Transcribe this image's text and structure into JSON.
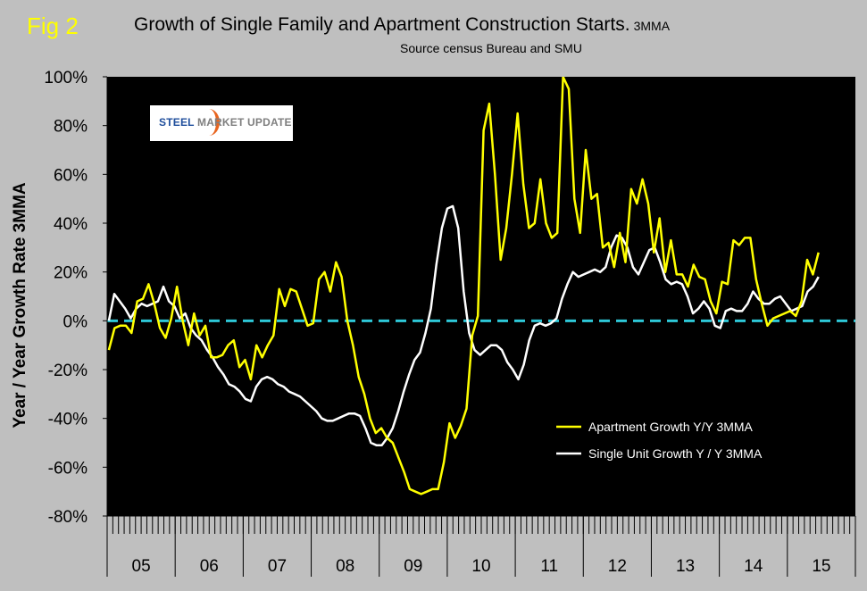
{
  "figure": {
    "label": "Fig 2",
    "title": "Growth of Single Family and Apartment Construction Starts.",
    "title_suffix": "3MMA",
    "subtitle": "Source census Bureau and SMU",
    "logo_text_a": "STEEL ",
    "logo_text_b": "MARKET UPDATE"
  },
  "colors": {
    "background": "#bfbfbf",
    "plot_bg": "#000000",
    "apartment": "#ffff00",
    "single": "#ffffff",
    "zero_line": "#2ec8d8"
  },
  "chart_data": {
    "type": "line",
    "title": "Growth of Single Family and Apartment Construction Starts. 3MMA",
    "ylabel": "Year / Year Growth Rate 3MMA",
    "xlabel": "",
    "ylim": [
      -80,
      100
    ],
    "yticks": [
      -80,
      -60,
      -40,
      -20,
      0,
      20,
      40,
      60,
      80,
      100
    ],
    "ytick_labels": [
      "-80%",
      "-60%",
      "-40%",
      "-20%",
      "0%",
      "20%",
      "40%",
      "60%",
      "80%",
      "100%"
    ],
    "years": [
      "05",
      "06",
      "07",
      "08",
      "09",
      "10",
      "11",
      "12",
      "13",
      "14",
      "15"
    ],
    "months_last_year": 6,
    "legend_position": "bottom-right",
    "reference_line": 0,
    "series": [
      {
        "name": "Apartment Growth Y/Y 3MMA",
        "values": [
          -12,
          -3,
          -2,
          -2,
          -5,
          8,
          9,
          15,
          7,
          -3,
          -7,
          1,
          14,
          0,
          -10,
          3,
          -6,
          -2,
          -15,
          -15,
          -14,
          -10,
          -8,
          -19,
          -16,
          -24,
          -10,
          -15,
          -10,
          -6,
          13,
          6,
          13,
          12,
          5,
          -2,
          -1,
          17,
          20,
          12,
          24,
          18,
          0,
          -10,
          -23,
          -30,
          -40,
          -46,
          -44,
          -48,
          -50,
          -56,
          -62,
          -69,
          -70,
          -71,
          -70,
          -69,
          -69,
          -58,
          -42,
          -48,
          -43,
          -36,
          -6,
          2,
          78,
          89,
          60,
          25,
          38,
          60,
          85,
          56,
          38,
          40,
          58,
          40,
          34,
          36,
          100,
          95,
          50,
          36,
          70,
          50,
          52,
          30,
          32,
          22,
          36,
          24,
          54,
          48,
          58,
          48,
          28,
          42,
          20,
          33,
          19,
          19,
          14,
          23,
          18,
          17,
          8,
          3,
          16,
          15,
          33,
          31,
          34,
          34,
          17,
          7,
          -2,
          1,
          2,
          3,
          4,
          2,
          8,
          25,
          19,
          28
        ]
      },
      {
        "name": "Single Unit Growth Y / Y 3MMA",
        "values": [
          0,
          11,
          8,
          5,
          1,
          5,
          7,
          6,
          7,
          8,
          14,
          8,
          6,
          1,
          3,
          -3,
          -6,
          -8,
          -12,
          -15,
          -19,
          -22,
          -26,
          -27,
          -29,
          -32,
          -33,
          -27,
          -24,
          -23,
          -24,
          -26,
          -27,
          -29,
          -30,
          -31,
          -33,
          -35,
          -37,
          -40,
          -41,
          -41,
          -40,
          -39,
          -38,
          -38,
          -39,
          -44,
          -50,
          -51,
          -51,
          -48,
          -44,
          -37,
          -29,
          -22,
          -16,
          -13,
          -5,
          5,
          23,
          38,
          46,
          47,
          38,
          12,
          -5,
          -12,
          -14,
          -12,
          -10,
          -10,
          -12,
          -17,
          -20,
          -24,
          -18,
          -8,
          -2,
          -1,
          -2,
          -1,
          1,
          9,
          15,
          20,
          18,
          19,
          20,
          21,
          20,
          22,
          30,
          35,
          34,
          30,
          22,
          19,
          24,
          29,
          30,
          24,
          17,
          15,
          16,
          15,
          10,
          3,
          5,
          8,
          5,
          -2,
          -3,
          4,
          5,
          4,
          4,
          7,
          12,
          9,
          7,
          7,
          9,
          10,
          7,
          4,
          5,
          6,
          12,
          14,
          18
        ]
      }
    ]
  }
}
